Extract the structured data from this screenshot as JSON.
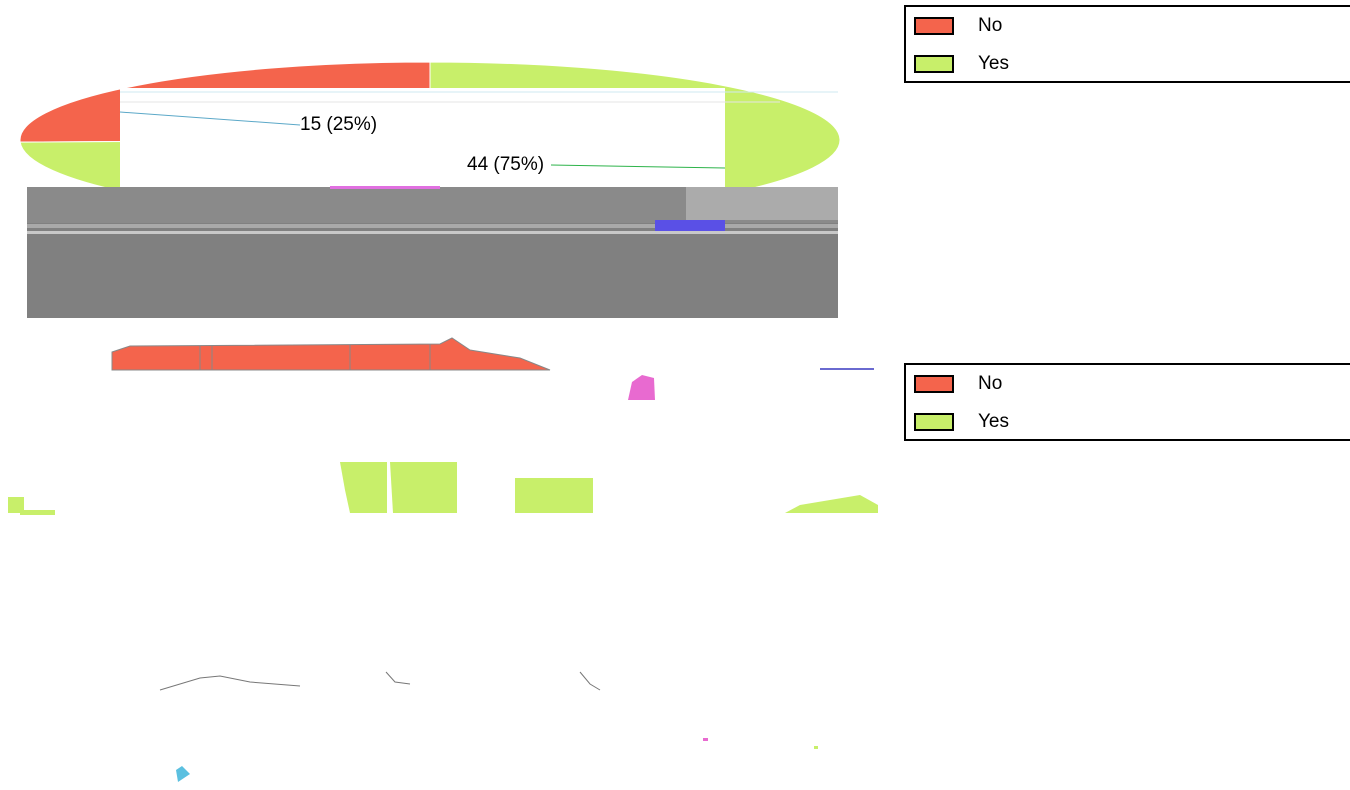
{
  "chart_data": [
    {
      "type": "pie",
      "categories": [
        "No",
        "Yes"
      ],
      "values": [
        15,
        44
      ],
      "value_labels": [
        "15 (25%)",
        "44 (75%)"
      ],
      "colors": [
        "#f4644c",
        "#c8ef6a"
      ],
      "legend": "top-right"
    },
    {
      "type": "map",
      "series": [
        {
          "name": "No",
          "color": "#f4644c"
        },
        {
          "name": "Yes",
          "color": "#c8ef6a"
        }
      ],
      "legend": "right"
    }
  ]
}
